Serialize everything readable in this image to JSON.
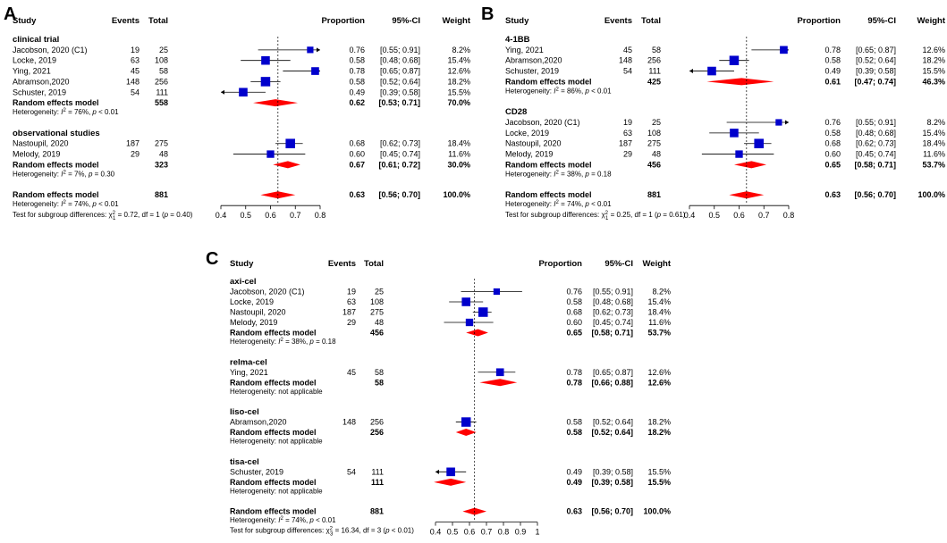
{
  "headers": {
    "study": "Study",
    "events": "Events",
    "total": "Total",
    "proportion": "Proportion",
    "ci": "95%-CI",
    "weight": "Weight"
  },
  "chart_data": [
    {
      "type": "forest",
      "panel": "A",
      "ref_line": 0.63,
      "xlim": [
        0.4,
        0.8
      ],
      "ticks": [
        "0.4",
        "0.5",
        "0.6",
        "0.7",
        "0.8"
      ],
      "groups": [
        {
          "name": "clinical trial",
          "studies": [
            {
              "study": "Jacobson, 2020 (C1)",
              "events": "19",
              "total": "25",
              "est": 0.76,
              "lo": 0.55,
              "hi": 0.91,
              "prop": "0.76",
              "ci": "[0.55; 0.91]",
              "weight": "8.2%"
            },
            {
              "study": "Locke, 2019",
              "events": "63",
              "total": "108",
              "est": 0.58,
              "lo": 0.48,
              "hi": 0.68,
              "prop": "0.58",
              "ci": "[0.48; 0.68]",
              "weight": "15.4%"
            },
            {
              "study": "Ying, 2021",
              "events": "45",
              "total": "58",
              "est": 0.78,
              "lo": 0.65,
              "hi": 0.87,
              "prop": "0.78",
              "ci": "[0.65; 0.87]",
              "weight": "12.6%"
            },
            {
              "study": "Abramson,2020",
              "events": "148",
              "total": "256",
              "est": 0.58,
              "lo": 0.52,
              "hi": 0.64,
              "prop": "0.58",
              "ci": "[0.52; 0.64]",
              "weight": "18.2%"
            },
            {
              "study": "Schuster, 2019",
              "events": "54",
              "total": "111",
              "est": 0.49,
              "lo": 0.39,
              "hi": 0.58,
              "prop": "0.49",
              "ci": "[0.39; 0.58]",
              "weight": "15.5%"
            }
          ],
          "summary": {
            "label": "Random effects model",
            "total": "558",
            "est": 0.62,
            "lo": 0.53,
            "hi": 0.71,
            "prop": "0.62",
            "ci": "[0.53; 0.71]",
            "weight": "70.0%"
          },
          "het": {
            "pre": "Heterogeneity: ",
            "i2": "= 76%, ",
            "p": "< 0.01"
          }
        },
        {
          "name": "observational studies",
          "studies": [
            {
              "study": "Nastoupil, 2020",
              "events": "187",
              "total": "275",
              "est": 0.68,
              "lo": 0.62,
              "hi": 0.73,
              "prop": "0.68",
              "ci": "[0.62; 0.73]",
              "weight": "18.4%"
            },
            {
              "study": "Melody, 2019",
              "events": "29",
              "total": "48",
              "est": 0.6,
              "lo": 0.45,
              "hi": 0.74,
              "prop": "0.60",
              "ci": "[0.45; 0.74]",
              "weight": "11.6%"
            }
          ],
          "summary": {
            "label": "Random effects model",
            "total": "323",
            "est": 0.67,
            "lo": 0.61,
            "hi": 0.72,
            "prop": "0.67",
            "ci": "[0.61; 0.72]",
            "weight": "30.0%"
          },
          "het": {
            "pre": "Heterogeneity: ",
            "i2": "= 7%, ",
            "p": "= 0.30"
          }
        }
      ],
      "overall": {
        "label": "Random effects model",
        "total": "881",
        "est": 0.63,
        "lo": 0.56,
        "hi": 0.7,
        "prop": "0.63",
        "ci": "[0.56; 0.70]",
        "weight": "100.0%"
      },
      "overall_het": {
        "pre": "Heterogeneity: ",
        "i2": "= 74%, ",
        "p": "< 0.01"
      },
      "subgroup_test": {
        "pre": "Test for subgroup differences: ",
        "chi": "= 0.72, df = 1 (",
        "p": "= 0.40)",
        "chi_sub": "1"
      }
    },
    {
      "type": "forest",
      "panel": "B",
      "ref_line": 0.63,
      "xlim": [
        0.4,
        0.8
      ],
      "ticks": [
        "0.4",
        "0.5",
        "0.6",
        "0.7",
        "0.8"
      ],
      "groups": [
        {
          "name": "4-1BB",
          "studies": [
            {
              "study": "Ying, 2021",
              "events": "45",
              "total": "58",
              "est": 0.78,
              "lo": 0.65,
              "hi": 0.87,
              "prop": "0.78",
              "ci": "[0.65; 0.87]",
              "weight": "12.6%"
            },
            {
              "study": "Abramson,2020",
              "events": "148",
              "total": "256",
              "est": 0.58,
              "lo": 0.52,
              "hi": 0.64,
              "prop": "0.58",
              "ci": "[0.52; 0.64]",
              "weight": "18.2%"
            },
            {
              "study": "Schuster, 2019",
              "events": "54",
              "total": "111",
              "est": 0.49,
              "lo": 0.39,
              "hi": 0.58,
              "prop": "0.49",
              "ci": "[0.39; 0.58]",
              "weight": "15.5%"
            }
          ],
          "summary": {
            "label": "Random effects model",
            "total": "425",
            "est": 0.61,
            "lo": 0.47,
            "hi": 0.74,
            "prop": "0.61",
            "ci": "[0.47; 0.74]",
            "weight": "46.3%"
          },
          "het": {
            "pre": "Heterogeneity: ",
            "i2": "= 86%, ",
            "p": "< 0.01"
          }
        },
        {
          "name": "CD28",
          "studies": [
            {
              "study": "Jacobson, 2020 (C1)",
              "events": "19",
              "total": "25",
              "est": 0.76,
              "lo": 0.55,
              "hi": 0.91,
              "prop": "0.76",
              "ci": "[0.55; 0.91]",
              "weight": "8.2%"
            },
            {
              "study": "Locke, 2019",
              "events": "63",
              "total": "108",
              "est": 0.58,
              "lo": 0.48,
              "hi": 0.68,
              "prop": "0.58",
              "ci": "[0.48; 0.68]",
              "weight": "15.4%"
            },
            {
              "study": "Nastoupil, 2020",
              "events": "187",
              "total": "275",
              "est": 0.68,
              "lo": 0.62,
              "hi": 0.73,
              "prop": "0.68",
              "ci": "[0.62; 0.73]",
              "weight": "18.4%"
            },
            {
              "study": "Melody, 2019",
              "events": "29",
              "total": "48",
              "est": 0.6,
              "lo": 0.45,
              "hi": 0.74,
              "prop": "0.60",
              "ci": "[0.45; 0.74]",
              "weight": "11.6%"
            }
          ],
          "summary": {
            "label": "Random effects model",
            "total": "456",
            "est": 0.65,
            "lo": 0.58,
            "hi": 0.71,
            "prop": "0.65",
            "ci": "[0.58; 0.71]",
            "weight": "53.7%"
          },
          "het": {
            "pre": "Heterogeneity: ",
            "i2": "= 38%, ",
            "p": "= 0.18"
          }
        }
      ],
      "overall": {
        "label": "Random effects model",
        "total": "881",
        "est": 0.63,
        "lo": 0.56,
        "hi": 0.7,
        "prop": "0.63",
        "ci": "[0.56; 0.70]",
        "weight": "100.0%"
      },
      "overall_het": {
        "pre": "Heterogeneity: ",
        "i2": "= 74%, ",
        "p": "< 0.01"
      },
      "subgroup_test": {
        "pre": "Test for subgroup differences: ",
        "chi": "= 0.25, df = 1 (",
        "p": "= 0.61)",
        "chi_sub": "1"
      }
    },
    {
      "type": "forest",
      "panel": "C",
      "ref_line": 0.63,
      "xlim": [
        0.4,
        1.0
      ],
      "ticks": [
        "0.4",
        "0.5",
        "0.6",
        "0.7",
        "0.8",
        "0.9",
        "1"
      ],
      "groups": [
        {
          "name": "axi-cel",
          "studies": [
            {
              "study": "Jacobson, 2020 (C1)",
              "events": "19",
              "total": "25",
              "est": 0.76,
              "lo": 0.55,
              "hi": 0.91,
              "prop": "0.76",
              "ci": "[0.55; 0.91]",
              "weight": "8.2%"
            },
            {
              "study": "Locke, 2019",
              "events": "63",
              "total": "108",
              "est": 0.58,
              "lo": 0.48,
              "hi": 0.68,
              "prop": "0.58",
              "ci": "[0.48; 0.68]",
              "weight": "15.4%"
            },
            {
              "study": "Nastoupil, 2020",
              "events": "187",
              "total": "275",
              "est": 0.68,
              "lo": 0.62,
              "hi": 0.73,
              "prop": "0.68",
              "ci": "[0.62; 0.73]",
              "weight": "18.4%"
            },
            {
              "study": "Melody, 2019",
              "events": "29",
              "total": "48",
              "est": 0.6,
              "lo": 0.45,
              "hi": 0.74,
              "prop": "0.60",
              "ci": "[0.45; 0.74]",
              "weight": "11.6%"
            }
          ],
          "summary": {
            "label": "Random effects model",
            "total": "456",
            "est": 0.65,
            "lo": 0.58,
            "hi": 0.71,
            "prop": "0.65",
            "ci": "[0.58; 0.71]",
            "weight": "53.7%"
          },
          "het": {
            "pre": "Heterogeneity: ",
            "i2": "= 38%, ",
            "p": "= 0.18"
          }
        },
        {
          "name": "relma-cel",
          "studies": [
            {
              "study": "Ying, 2021",
              "events": "45",
              "total": "58",
              "est": 0.78,
              "lo": 0.65,
              "hi": 0.87,
              "prop": "0.78",
              "ci": "[0.65; 0.87]",
              "weight": "12.6%"
            }
          ],
          "summary": {
            "label": "Random effects model",
            "total": "58",
            "est": 0.78,
            "lo": 0.66,
            "hi": 0.88,
            "prop": "0.78",
            "ci": "[0.66; 0.88]",
            "weight": "12.6%"
          },
          "het_text": "Heterogeneity: not applicable"
        },
        {
          "name": "liso-cel",
          "studies": [
            {
              "study": "Abramson,2020",
              "events": "148",
              "total": "256",
              "est": 0.58,
              "lo": 0.52,
              "hi": 0.64,
              "prop": "0.58",
              "ci": "[0.52; 0.64]",
              "weight": "18.2%"
            }
          ],
          "summary": {
            "label": "Random effects model",
            "total": "256",
            "est": 0.58,
            "lo": 0.52,
            "hi": 0.64,
            "prop": "0.58",
            "ci": "[0.52; 0.64]",
            "weight": "18.2%"
          },
          "het_text": "Heterogeneity: not applicable"
        },
        {
          "name": "tisa-cel",
          "studies": [
            {
              "study": "Schuster, 2019",
              "events": "54",
              "total": "111",
              "est": 0.49,
              "lo": 0.39,
              "hi": 0.58,
              "prop": "0.49",
              "ci": "[0.39; 0.58]",
              "weight": "15.5%"
            }
          ],
          "summary": {
            "label": "Random effects model",
            "total": "111",
            "est": 0.49,
            "lo": 0.39,
            "hi": 0.58,
            "prop": "0.49",
            "ci": "[0.39; 0.58]",
            "weight": "15.5%"
          },
          "het_text": "Heterogeneity: not applicable"
        }
      ],
      "overall": {
        "label": "Random effects model",
        "total": "881",
        "est": 0.63,
        "lo": 0.56,
        "hi": 0.7,
        "prop": "0.63",
        "ci": "[0.56; 0.70]",
        "weight": "100.0%"
      },
      "overall_het": {
        "pre": "Heterogeneity: ",
        "i2": "= 74%, ",
        "p": "< 0.01"
      },
      "subgroup_test": {
        "pre": "Test for subgroup differences: ",
        "chi": "= 16.34, df = 3 (",
        "p": "< 0.01)",
        "chi_sub": "3"
      }
    }
  ],
  "colors": {
    "square": "#0000cc",
    "diamond": "#ff0000",
    "line": "#000000"
  }
}
